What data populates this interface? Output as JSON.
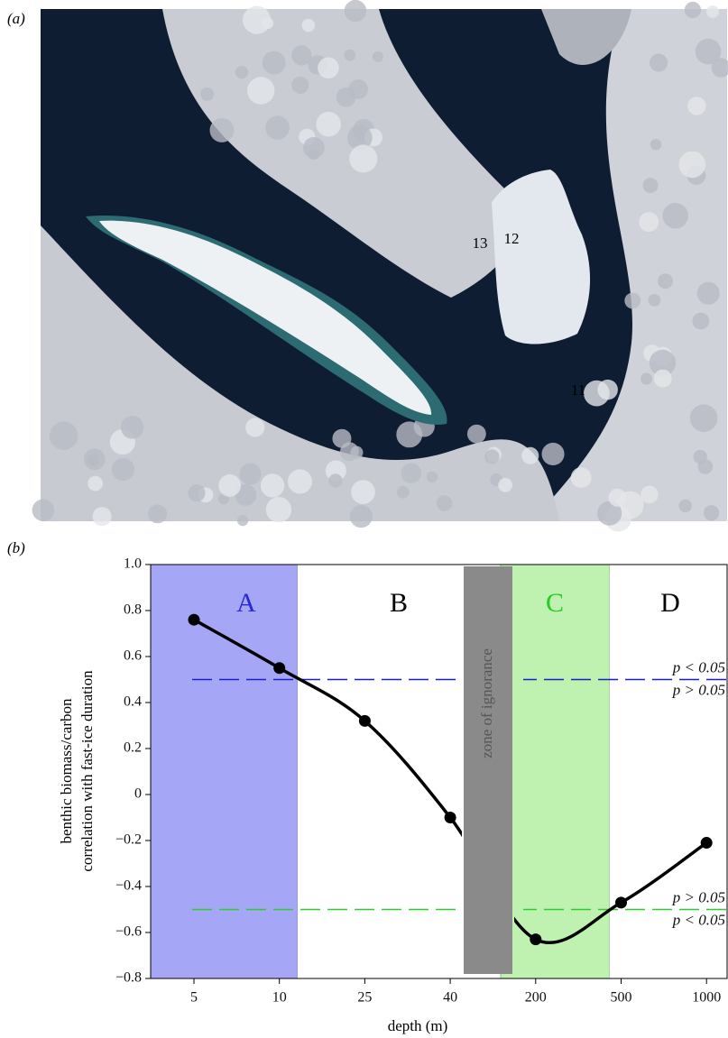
{
  "panel_a": {
    "label": "(a)",
    "markers": [
      "13",
      "12",
      "11"
    ]
  },
  "chart_data": {
    "type": "line",
    "panel_label": "(b)",
    "xlabel": "depth (m)",
    "ylabel": [
      "benthic biomass/carbon",
      "correlation with fast-ice duration"
    ],
    "categories": [
      "5",
      "10",
      "25",
      "40",
      "200",
      "500",
      "1000"
    ],
    "values": [
      0.76,
      0.55,
      0.32,
      -0.1,
      -0.63,
      -0.47,
      -0.21
    ],
    "color": "#000000",
    "ylim": [
      -0.8,
      1.0
    ],
    "yticks": [
      {
        "value": -0.8,
        "label": "−0.8"
      },
      {
        "value": -0.6,
        "label": "−0.6"
      },
      {
        "value": -0.4,
        "label": "−0.4"
      },
      {
        "value": -0.2,
        "label": "−0.2"
      },
      0,
      0.2,
      0.4,
      0.6,
      0.8,
      {
        "value": 1.0,
        "label": "1.0"
      }
    ],
    "regions": [
      {
        "label": "A",
        "color": "#a6a6f7",
        "text_color": "#2828d8"
      },
      {
        "label": "B",
        "color": "#ffffff",
        "text_color": "#000000"
      },
      {
        "label": "C",
        "color": "#bff2b0",
        "text_color": "#22cc22"
      },
      {
        "label": "D",
        "color": "#ffffff",
        "text_color": "#000000"
      }
    ],
    "zone_label": "zone of ignorance",
    "thresholds": [
      {
        "value": 0.5,
        "color": "#1c1cd0",
        "above": "p < 0.05",
        "below": "p > 0.05",
        "significant": "above"
      },
      {
        "value": -0.5,
        "color": "#2ecc2e",
        "above": "p > 0.05",
        "below": "p < 0.05",
        "significant": "below"
      }
    ]
  }
}
